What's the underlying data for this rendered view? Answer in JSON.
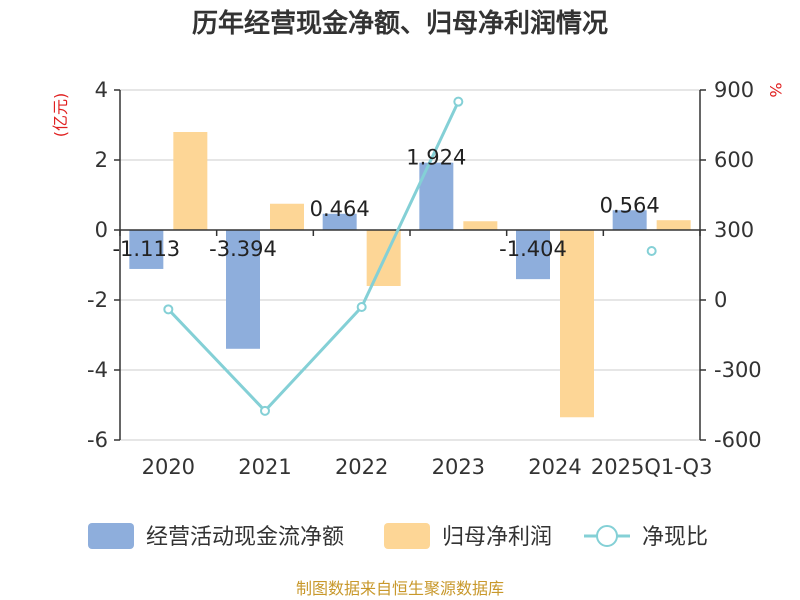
{
  "chart_data": {
    "type": "bar",
    "title": "历年经营现金净额、归母净利润情况",
    "categories": [
      "2020",
      "2021",
      "2022",
      "2023",
      "2024",
      "2025Q1-Q3"
    ],
    "left_axis": {
      "unit": "(亿元)",
      "min": -6,
      "max": 4,
      "ticks": [
        "4",
        "2",
        "0",
        "-2",
        "-4",
        "-6"
      ]
    },
    "right_axis": {
      "unit": "%",
      "min": -600,
      "max": 900,
      "ticks": [
        "900",
        "600",
        "300",
        "0",
        "-300",
        "-600"
      ]
    },
    "series": [
      {
        "name": "经营活动现金流净额",
        "type": "bar",
        "axis": "left",
        "color": "#8eaedc",
        "values": [
          -1.113,
          -3.394,
          0.464,
          1.924,
          -1.404,
          0.564
        ],
        "labels": [
          "-1.113",
          "-3.394",
          "0.464",
          "1.924",
          "-1.404",
          "0.564"
        ]
      },
      {
        "name": "归母净利润",
        "type": "bar",
        "axis": "left",
        "color": "#fdd696",
        "values": [
          2.8,
          0.75,
          -1.6,
          0.25,
          -5.35,
          0.28
        ]
      },
      {
        "name": "净现比",
        "type": "line",
        "axis": "right",
        "color": "#84d0d6",
        "values": [
          -40,
          -475,
          -30,
          850,
          null,
          210
        ]
      }
    ],
    "legend": [
      "经营活动现金流净额",
      "归母净利润",
      "净现比"
    ],
    "source": "制图数据来自恒生聚源数据库"
  }
}
